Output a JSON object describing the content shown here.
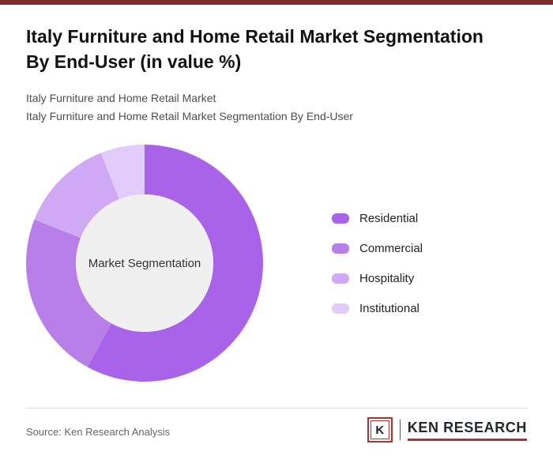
{
  "header": {
    "title_line1": "Italy Furniture and Home Retail Market Segmentation",
    "title_line2": "By End-User (in value %)",
    "subtitle_line1": "Italy Furniture and Home Retail Market",
    "subtitle_line2": "Italy Furniture and Home Retail Market Segmentation By End-User"
  },
  "chart_data": {
    "type": "pie",
    "subtype": "donut",
    "title": "Italy Furniture and Home Retail Market Segmentation By End-User (in value %)",
    "center_label": "Market Segmentation",
    "categories": [
      "Residential",
      "Commercial",
      "Hospitality",
      "Institutional"
    ],
    "values": [
      58,
      23,
      13,
      6
    ],
    "unit": "%",
    "colors": [
      "#A963E8",
      "#B87FE9",
      "#D0A9F4",
      "#E2CCFA"
    ],
    "inner_circle_color": "#F0F0F0",
    "start_angle_deg": -90,
    "direction": "clockwise",
    "legend_position": "right",
    "data_labels_shown": false
  },
  "footer": {
    "source_text": "Source: Ken Research Analysis",
    "logo_k": "K",
    "logo_text": "KEN RESEARCH"
  },
  "brand": {
    "top_bar_color": "#7D2B2F",
    "logo_red": "#A8332F"
  }
}
